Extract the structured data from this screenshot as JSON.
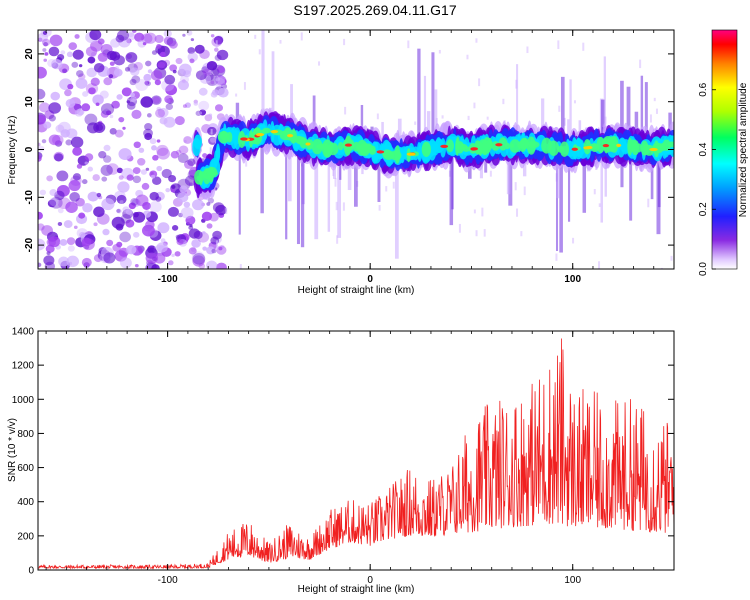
{
  "figure_title": "S197.2025.269.04.11.G17",
  "colors": {
    "blob_low": "#a040f0",
    "blob_mid": "#6010d0",
    "ridge_core": "#00e0ff",
    "ridge_hot": "#ff2020",
    "snr_line": "#f02020"
  },
  "chart_data": [
    {
      "type": "heatmap",
      "title": "",
      "xlabel": "Height of straight line (km)",
      "ylabel": "Frequency (Hz)",
      "xlim": [
        -164,
        150
      ],
      "ylim": [
        -25,
        25
      ],
      "xticks": [
        -100,
        0,
        100
      ],
      "xtick_labels": [
        "-100",
        "0",
        "100"
      ],
      "yticks": [
        -20,
        -10,
        0,
        10,
        20
      ],
      "ytick_labels": [
        "-20",
        "-10",
        "0",
        "10",
        "20"
      ],
      "description_series": [
        {
          "name": "noise region",
          "x_range": [
            -164,
            -80
          ],
          "y_range": [
            -25,
            25
          ]
        },
        {
          "name": "ridge",
          "x": [
            -85,
            -78,
            -72,
            -60,
            -50,
            -40,
            -30,
            -20,
            -10,
            0,
            10,
            20,
            30,
            40,
            50,
            60,
            80,
            100,
            120,
            140,
            150
          ],
          "y": [
            -6,
            -5,
            3,
            2,
            4,
            3,
            1,
            0,
            1,
            0,
            -1,
            -1,
            0,
            1,
            0,
            1,
            1,
            0,
            1,
            0,
            1
          ]
        }
      ],
      "colorbar": {
        "label": "Normalized spectral amplitude",
        "range": [
          0,
          0.8
        ],
        "ticks": [
          0.0,
          0.2,
          0.4,
          0.6
        ],
        "tick_labels": [
          "0.0",
          "0.2",
          "0.4",
          "0.6"
        ]
      }
    },
    {
      "type": "line",
      "title": "",
      "xlabel": "Height of straight line (km)",
      "ylabel": "SNR (10 * v/v)",
      "xlim": [
        -164,
        150
      ],
      "ylim": [
        0,
        1400
      ],
      "xticks": [
        -100,
        0,
        100
      ],
      "xtick_labels": [
        "-100",
        "0",
        "100"
      ],
      "yticks": [
        0,
        200,
        400,
        600,
        800,
        1000,
        1200,
        1400
      ],
      "ytick_labels": [
        "0",
        "200",
        "400",
        "600",
        "800",
        "1000",
        "1200",
        "1400"
      ],
      "series": [
        {
          "name": "SNR",
          "envelope_x": [
            -164,
            -140,
            -120,
            -100,
            -80,
            -70,
            -60,
            -50,
            -40,
            -30,
            -20,
            -10,
            0,
            10,
            20,
            30,
            40,
            50,
            60,
            70,
            80,
            90,
            95,
            100,
            110,
            120,
            130,
            140,
            150
          ],
          "envelope_y": [
            30,
            30,
            30,
            30,
            40,
            230,
            300,
            160,
            280,
            200,
            360,
            420,
            400,
            500,
            620,
            540,
            620,
            900,
            1000,
            1050,
            1120,
            1300,
            1400,
            1080,
            1050,
            1000,
            1020,
            920,
            870
          ],
          "floor_y": [
            10,
            10,
            10,
            10,
            12,
            60,
            80,
            40,
            70,
            60,
            120,
            160,
            140,
            180,
            200,
            190,
            210,
            220,
            240,
            250,
            260,
            270,
            260,
            250,
            240,
            240,
            230,
            220,
            210
          ]
        }
      ]
    }
  ]
}
